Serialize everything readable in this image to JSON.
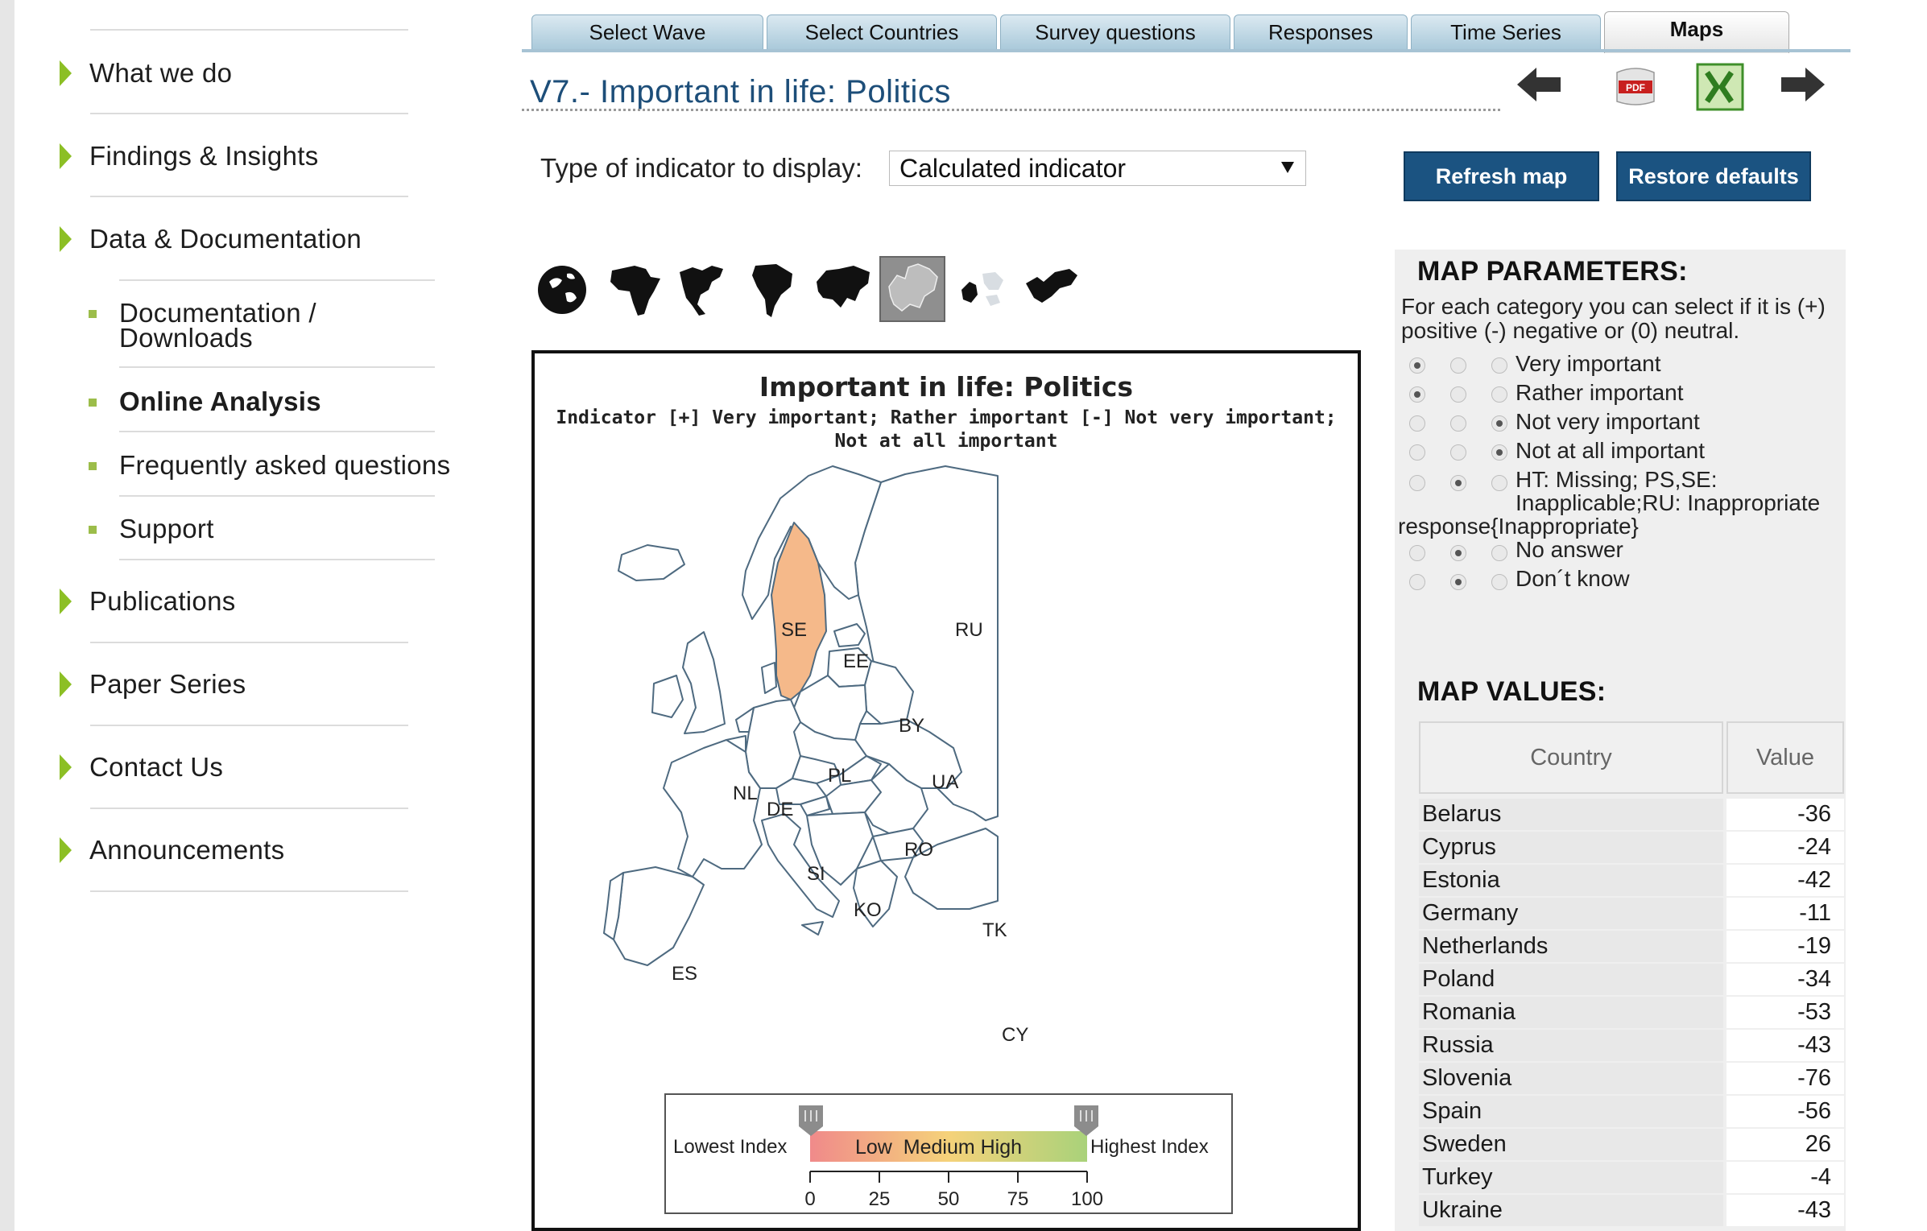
{
  "sidebar": {
    "items": [
      {
        "label": "What we do"
      },
      {
        "label": "Findings & Insights"
      },
      {
        "label": "Data & Documentation"
      },
      {
        "label": "Publications"
      },
      {
        "label": "Paper Series"
      },
      {
        "label": "Contact Us"
      },
      {
        "label": "Announcements"
      }
    ],
    "subitems": [
      {
        "line1": "Documentation /",
        "line2": "Downloads"
      },
      {
        "label": "Online Analysis"
      },
      {
        "label": "Frequently asked questions"
      },
      {
        "label": "Support"
      }
    ]
  },
  "tabs": [
    {
      "label": "Select Wave"
    },
    {
      "label": "Select Countries"
    },
    {
      "label": "Survey questions"
    },
    {
      "label": "Responses"
    },
    {
      "label": "Time Series"
    },
    {
      "label": "Maps"
    }
  ],
  "page_title": "V7.- Important in life: Politics",
  "toolbar": {
    "icons": [
      "back-arrow-icon",
      "pdf-icon",
      "excel-icon",
      "forward-arrow-icon"
    ],
    "pdf_text": "PDF"
  },
  "indicator": {
    "label": "Type of indicator to display:",
    "selected": "Calculated indicator"
  },
  "buttons": {
    "refresh": "Refresh map",
    "restore": "Restore defaults"
  },
  "regions": [
    "world",
    "africa",
    "north-america",
    "south-america",
    "asia",
    "europe",
    "middle-east",
    "oceania"
  ],
  "map": {
    "title": "Important in life: Politics",
    "subtitle_line1": "Indicator [+] Very important; Rather important [-] Not very important;",
    "subtitle_line2": "Not at all important",
    "highlight_color": "#f5b98a",
    "country_labels": [
      "SE",
      "EE",
      "RU",
      "BY",
      "PL",
      "UA",
      "NL",
      "DE",
      "RO",
      "SI",
      "KO",
      "TK",
      "ES",
      "CY"
    ],
    "legend": {
      "lowest": "Lowest Index",
      "highest": "Highest Index",
      "scale_text": "Low  Medium High",
      "ticks": [
        "0",
        "25",
        "50",
        "75",
        "100"
      ]
    }
  },
  "params": {
    "title": "MAP PARAMETERS:",
    "description": "For each category you can select if it is (+) positive (-) negative or (0) neutral.",
    "rows": [
      {
        "label": "Very important",
        "selected": "positive"
      },
      {
        "label": "Rather important",
        "selected": "positive"
      },
      {
        "label": "Not very important",
        "selected": "neutral"
      },
      {
        "label": "Not at all important",
        "selected": "neutral"
      },
      {
        "label_line1": "HT: Missing; PS,SE:",
        "label_line2": "Inapplicable;RU: Inappropriate",
        "label_line3": "response{Inappropriate}",
        "selected": "negative"
      },
      {
        "label": "No answer",
        "selected": "negative"
      },
      {
        "label": "Don´t know",
        "selected": "negative"
      }
    ]
  },
  "values": {
    "title": "MAP VALUES:",
    "headers": {
      "country": "Country",
      "value": "Value"
    },
    "rows": [
      {
        "country": "Belarus",
        "value": "-36"
      },
      {
        "country": "Cyprus",
        "value": "-24"
      },
      {
        "country": "Estonia",
        "value": "-42"
      },
      {
        "country": "Germany",
        "value": "-11"
      },
      {
        "country": "Netherlands",
        "value": "-19"
      },
      {
        "country": "Poland",
        "value": "-34"
      },
      {
        "country": "Romania",
        "value": "-53"
      },
      {
        "country": "Russia",
        "value": "-43"
      },
      {
        "country": "Slovenia",
        "value": "-76"
      },
      {
        "country": "Spain",
        "value": "-56"
      },
      {
        "country": "Sweden",
        "value": "26"
      },
      {
        "country": "Turkey",
        "value": "-4"
      },
      {
        "country": "Ukraine",
        "value": "-43"
      }
    ]
  }
}
